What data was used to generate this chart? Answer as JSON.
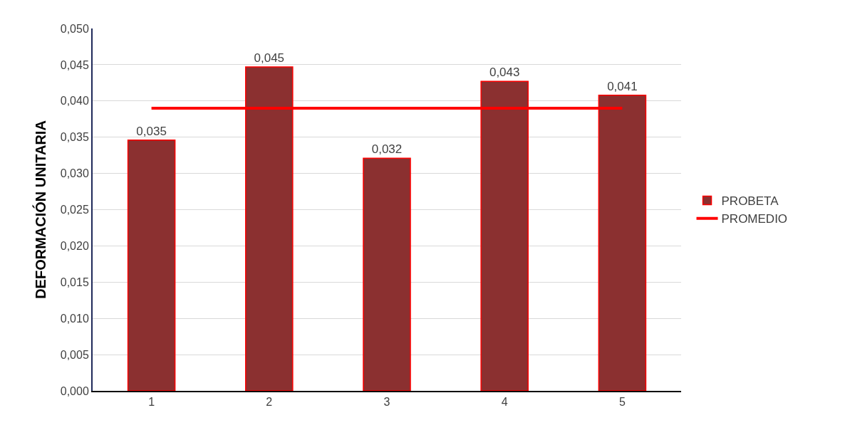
{
  "chart_data": {
    "type": "bar",
    "ylabel": "DEFORMACIÓN UNITARIA",
    "categories": [
      "1",
      "2",
      "3",
      "4",
      "5"
    ],
    "series": [
      {
        "name": "PROBETA",
        "color": "#8b3030",
        "values": [
          0.0346,
          0.0447,
          0.0321,
          0.0427,
          0.0408
        ],
        "value_labels": [
          "0,035",
          "0,045",
          "0,032",
          "0,043",
          "0,041"
        ]
      },
      {
        "name": "PROMEDIO",
        "type": "line",
        "color": "#ff0000",
        "values": [
          0.039,
          0.039,
          0.039,
          0.039,
          0.039
        ]
      }
    ],
    "ylim": [
      0,
      0.05
    ],
    "yticks": [
      {
        "value": 0,
        "label": "0,000"
      },
      {
        "value": 0.005,
        "label": "0,005"
      },
      {
        "value": 0.01,
        "label": "0,010"
      },
      {
        "value": 0.015,
        "label": "0,015"
      },
      {
        "value": 0.02,
        "label": "0,020"
      },
      {
        "value": 0.025,
        "label": "0,025"
      },
      {
        "value": 0.03,
        "label": "0,030"
      },
      {
        "value": 0.035,
        "label": "0,035"
      },
      {
        "value": 0.04,
        "label": "0,040"
      },
      {
        "value": 0.045,
        "label": "0,045"
      },
      {
        "value": 0.05,
        "label": "0,050"
      }
    ],
    "grid": "y",
    "legend": "right"
  }
}
